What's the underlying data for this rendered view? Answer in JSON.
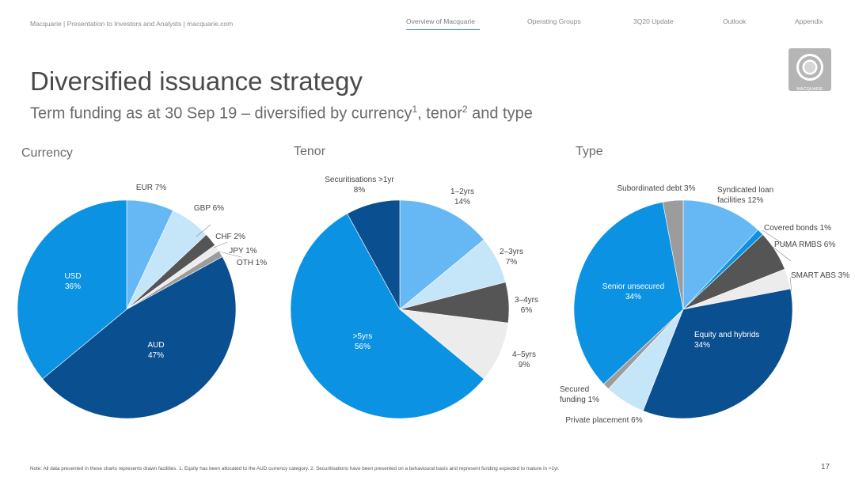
{
  "header": {
    "breadcrumb": "Macquarie  |  Presentation to Investors and Analysts  |  macquarie.com",
    "nav": [
      "Overview of Macquarie",
      "Operating Groups",
      "3Q20 Update",
      "Outlook",
      "Appendix"
    ],
    "active_nav": "Overview of Macquarie",
    "logo_text": "MACQUARIE"
  },
  "title": "Diversified issuance strategy",
  "subtitle": {
    "text1": "Term funding as at 30 Sep 19 – diversified by currency",
    "sup1": "1",
    "text2": ", tenor",
    "sup2": "2",
    "text3": " and type"
  },
  "chart_data": [
    {
      "type": "pie",
      "title": "Currency",
      "slices": [
        {
          "label": "EUR 7%",
          "value": 7,
          "color": "#66b8f5"
        },
        {
          "label": "GBP 6%",
          "value": 6,
          "color": "#c5e5f9"
        },
        {
          "label": "CHF 2%",
          "value": 2,
          "color": "#555555"
        },
        {
          "label": "JPY 1%",
          "value": 1,
          "color": "#ececec"
        },
        {
          "label": "OTH 1%",
          "value": 1,
          "color": "#9c9c9c"
        },
        {
          "label": "AUD\n47%",
          "value": 47,
          "color": "#0a4f8f"
        },
        {
          "label": "USD\n36%",
          "value": 36,
          "color": "#0b92e3"
        }
      ]
    },
    {
      "type": "pie",
      "title": "Tenor",
      "slices": [
        {
          "label": "1–2yrs\n14%",
          "value": 14,
          "color": "#66b8f5"
        },
        {
          "label": "2–3yrs\n7%",
          "value": 7,
          "color": "#c5e5f9"
        },
        {
          "label": "3–4yrs\n6%",
          "value": 6,
          "color": "#555555"
        },
        {
          "label": "4–5yrs\n9%",
          "value": 9,
          "color": "#ececec"
        },
        {
          "label": ">5yrs\n56%",
          "value": 56,
          "color": "#0b92e3"
        },
        {
          "label": "Securitisations >1yr\n8%",
          "value": 8,
          "color": "#0a4f8f"
        }
      ]
    },
    {
      "type": "pie",
      "title": "Type",
      "slices": [
        {
          "label": "Syndicated loan\nfacilities 12%",
          "value": 12,
          "color": "#66b8f5"
        },
        {
          "label": "Covered bonds 1%",
          "value": 1,
          "color": "#0b92e3"
        },
        {
          "label": "PUMA RMBS 6%",
          "value": 6,
          "color": "#555555"
        },
        {
          "label": "SMART ABS 3%",
          "value": 3,
          "color": "#ececec"
        },
        {
          "label": "Equity and hybrids\n34%",
          "value": 34,
          "color": "#0a4f8f"
        },
        {
          "label": "Private placement 6%",
          "value": 6,
          "color": "#c5e5f9"
        },
        {
          "label": "Secured\nfunding 1%",
          "value": 1,
          "color": "#9c9c9c"
        },
        {
          "label": "Senior unsecured\n34%",
          "value": 34,
          "color": "#0b92e3"
        },
        {
          "label": "Subordinated debt 3%",
          "value": 3,
          "color": "#9c9c9c"
        }
      ]
    }
  ],
  "footnote": "Note: All data presented in these charts represents drawn facilities.  1. Equity has been allocated to the AUD currency category.  2. Securitisations have been presented on a behavioural basis and represent funding expected to mature in >1yr.",
  "page_number": "17"
}
